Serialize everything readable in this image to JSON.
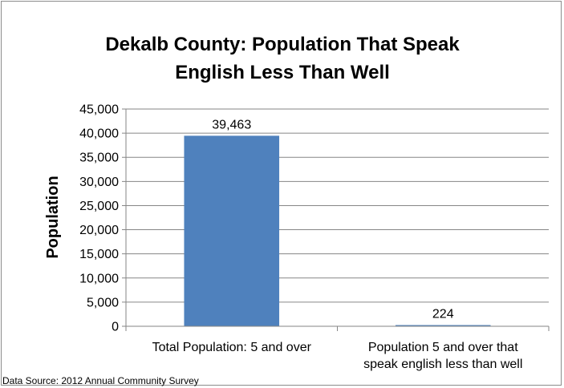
{
  "chart_data": {
    "type": "bar",
    "title_lines": [
      "Dekalb County: Population That Speak",
      "English Less Than Well"
    ],
    "ylabel": "Population",
    "xlabel": "",
    "categories": [
      [
        "Total Population: 5 and over"
      ],
      [
        "Population 5 and over that",
        "speak english less than well"
      ]
    ],
    "values": [
      39463,
      224
    ],
    "data_labels": [
      "39,463",
      "224"
    ],
    "ylim": [
      0,
      45000
    ],
    "yticks": [
      0,
      5000,
      10000,
      15000,
      20000,
      25000,
      30000,
      35000,
      40000,
      45000
    ],
    "ytick_labels": [
      "0",
      "5,000",
      "10,000",
      "15,000",
      "20,000",
      "25,000",
      "30,000",
      "35,000",
      "40,000",
      "45,000"
    ],
    "grid": true,
    "legend": "none",
    "bar_color": "#4F81BD",
    "grid_color": "#868686"
  },
  "source_note": "Data Source: 2012 Annual Community Survey"
}
